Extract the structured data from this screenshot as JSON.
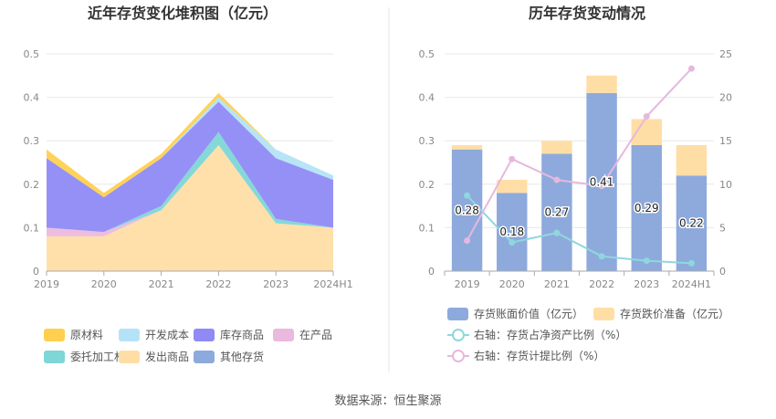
{
  "source": "数据来源：恒生聚源",
  "chart_data": [
    {
      "type": "area",
      "title": "近年存货变化堆积图（亿元）",
      "categories": [
        "2019",
        "2020",
        "2021",
        "2022",
        "2023",
        "2024H1"
      ],
      "ylim": [
        0,
        0.5
      ],
      "yticks": [
        "0",
        "0.1",
        "0.2",
        "0.3",
        "0.4",
        "0.5"
      ],
      "grid": true,
      "legend_position": "bottom",
      "series": [
        {
          "name": "发出商品",
          "color": "#FFDEA6",
          "values": [
            0.08,
            0.08,
            0.14,
            0.29,
            0.11,
            0.1
          ]
        },
        {
          "name": "在产品",
          "color": "#EBB9DD",
          "values": [
            0.02,
            0.01,
            0.0,
            0.0,
            0.0,
            0.0
          ]
        },
        {
          "name": "委托加工材料",
          "color": "#7ED6D6",
          "values": [
            0.0,
            0.0,
            0.01,
            0.03,
            0.01,
            0.0
          ]
        },
        {
          "name": "库存商品",
          "color": "#8F8AF5",
          "values": [
            0.16,
            0.08,
            0.11,
            0.07,
            0.14,
            0.11
          ]
        },
        {
          "name": "开发成本",
          "color": "#B4E3F8",
          "values": [
            0.0,
            0.0,
            0.0,
            0.01,
            0.02,
            0.01
          ]
        },
        {
          "name": "原材料",
          "color": "#FFD04F",
          "values": [
            0.02,
            0.01,
            0.01,
            0.01,
            0.0,
            0.0
          ]
        },
        {
          "name": "其他存货",
          "color": "#8EAADC",
          "values": [
            0.0,
            0.0,
            0.0,
            0.0,
            0.0,
            0.0
          ]
        }
      ],
      "legend_order": [
        "原材料",
        "开发成本",
        "库存商品",
        "在产品",
        "委托加工材料",
        "发出商品",
        "其他存货"
      ]
    },
    {
      "type": "bar",
      "title": "历年存货变动情况",
      "categories": [
        "2019",
        "2020",
        "2021",
        "2022",
        "2023",
        "2024H1"
      ],
      "ylim": [
        0,
        0.5
      ],
      "yticks": [
        "0",
        "0.1",
        "0.2",
        "0.3",
        "0.4",
        "0.5"
      ],
      "y2lim": [
        0,
        25
      ],
      "y2ticks": [
        "0",
        "5",
        "10",
        "15",
        "20",
        "25"
      ],
      "grid": true,
      "legend_position": "bottom",
      "series": [
        {
          "name": "存货账面价值（亿元）",
          "color": "#8EAADC",
          "type": "bar",
          "values": [
            0.28,
            0.18,
            0.27,
            0.41,
            0.29,
            0.22
          ],
          "labels": [
            "0.28",
            "0.18",
            "0.27",
            "0.41",
            "0.29",
            "0.22"
          ]
        },
        {
          "name": "存货跌价准备（亿元）",
          "color": "#FFDEA6",
          "type": "bar",
          "values": [
            0.01,
            0.03,
            0.03,
            0.04,
            0.06,
            0.07
          ]
        },
        {
          "name": "右轴：存货占净资产比例（%）",
          "color": "#8ED8DD",
          "type": "line",
          "axis": "right",
          "values": [
            8.7,
            3.3,
            4.4,
            1.7,
            1.2,
            0.9
          ]
        },
        {
          "name": "右轴：存货计提比例（%）",
          "color": "#E6B8DD",
          "type": "line",
          "axis": "right",
          "values": [
            3.5,
            12.9,
            10.5,
            9.8,
            17.8,
            23.3
          ]
        }
      ]
    }
  ]
}
